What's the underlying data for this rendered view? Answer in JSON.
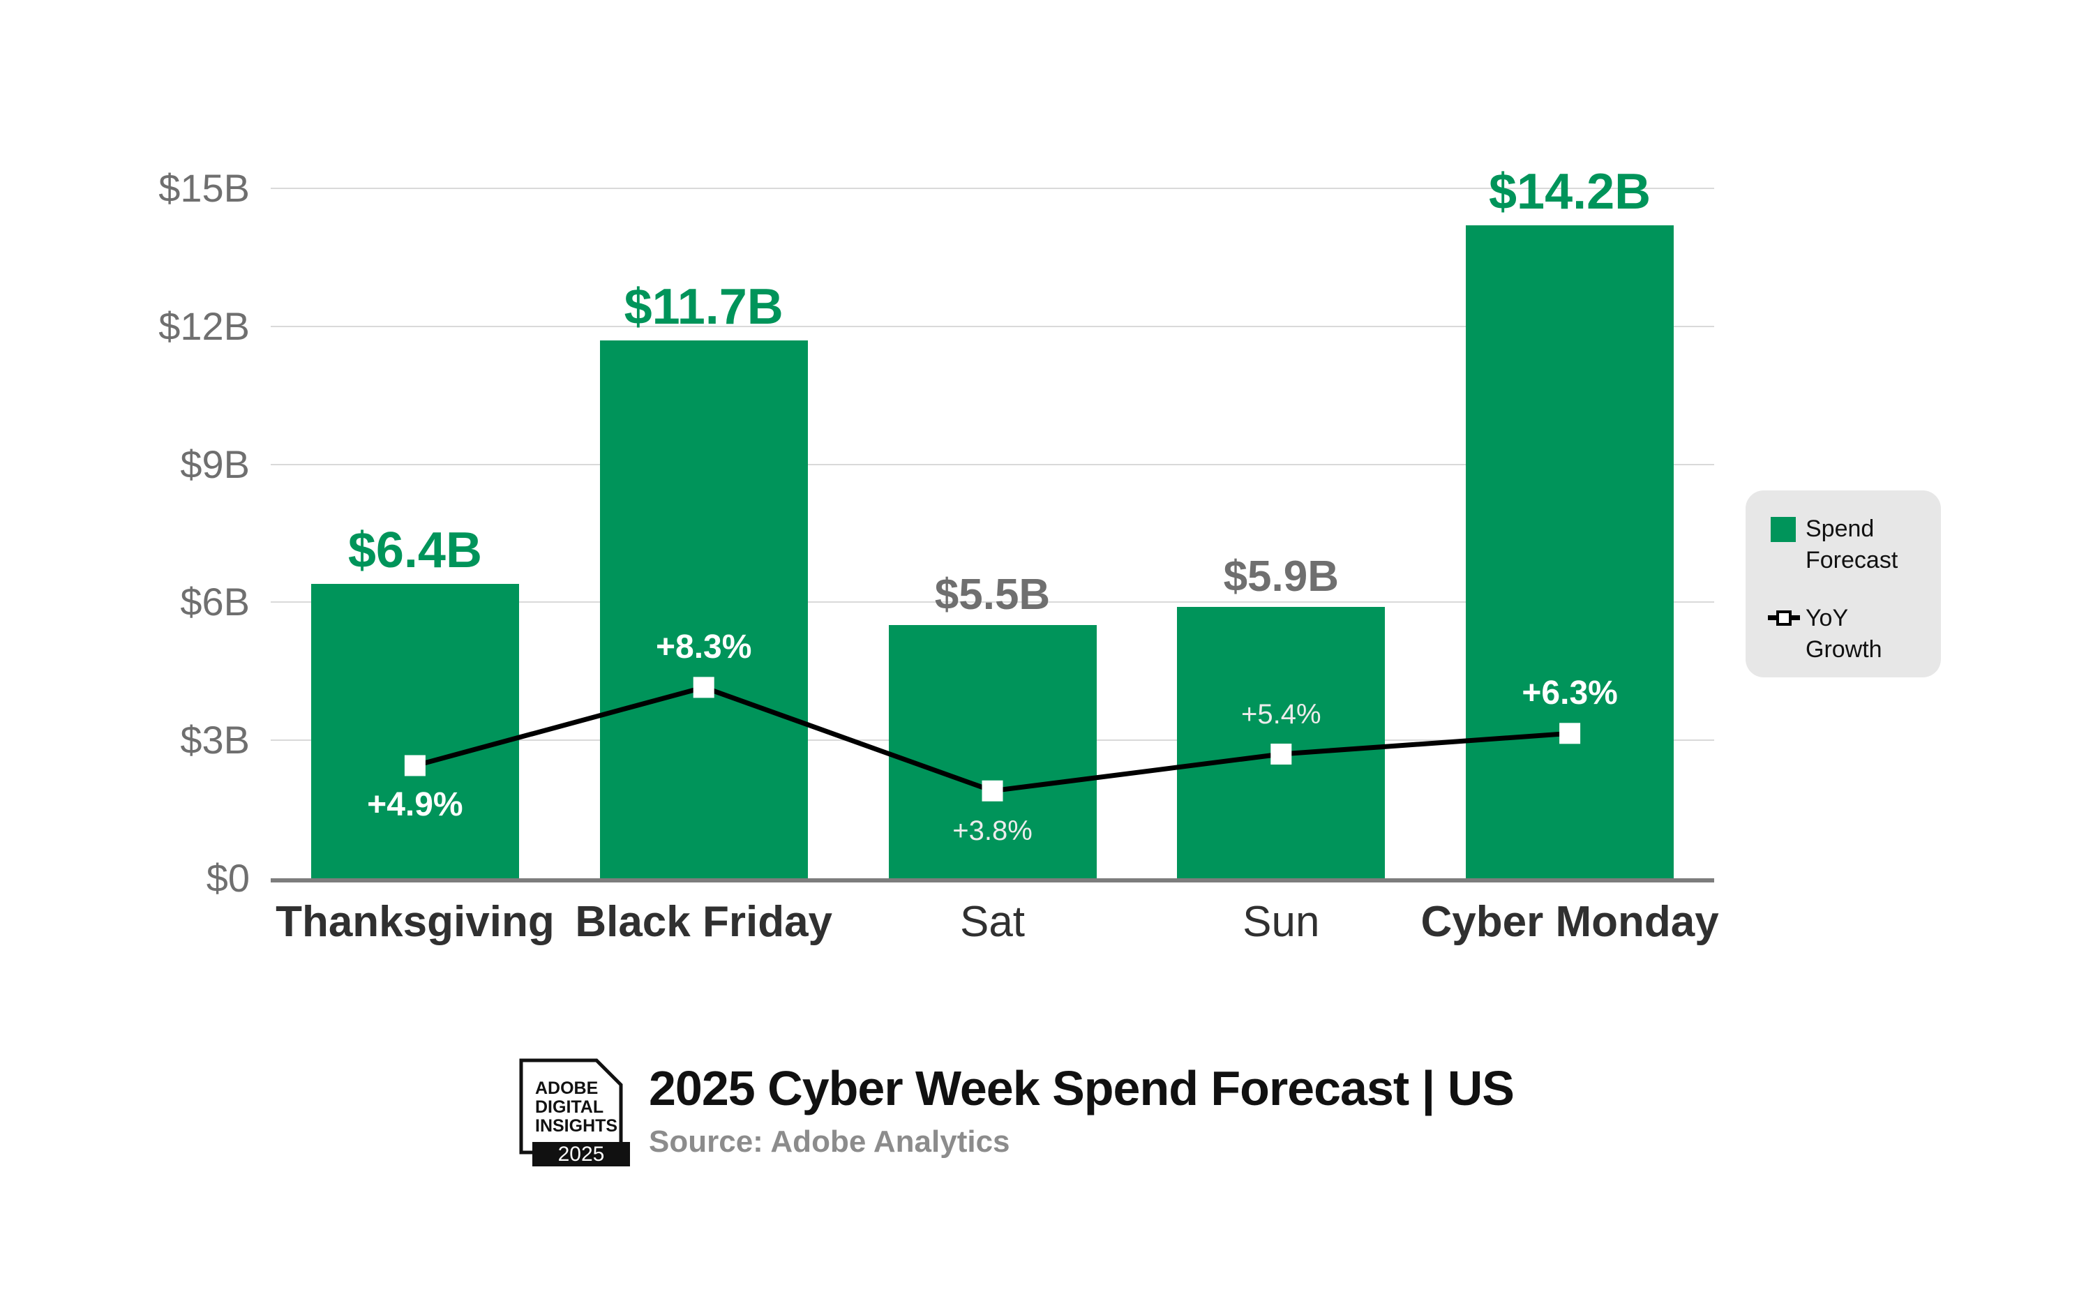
{
  "colors": {
    "bar_green": "#00945a",
    "label_green": "#00945a",
    "label_gray": "#6f6f6f",
    "gridline": "#d9d9d9",
    "axis_line": "#7d7d7d",
    "x_label": "#303030",
    "line_black": "#000000",
    "marker_white": "#ffffff",
    "legend_bg": "#e7e7e7",
    "title_black": "#111111",
    "source_gray": "#8c8c8c"
  },
  "chart_data": {
    "type": "bar",
    "subtype": "bar-line-combo",
    "title": "2025 Cyber Week Spend Forecast | US",
    "categories": [
      "Thanksgiving",
      "Black Friday",
      "Sat",
      "Sun",
      "Cyber Monday"
    ],
    "category_emphasis": [
      true,
      true,
      false,
      false,
      true
    ],
    "series": [
      {
        "name": "Spend Forecast",
        "type": "bar",
        "unit": "USD billions",
        "values": [
          6.4,
          11.7,
          5.5,
          5.9,
          14.2
        ],
        "data_labels": [
          "$6.4B",
          "$11.7B",
          "$5.5B",
          "$5.9B",
          "$14.2B"
        ],
        "label_color_emphasis": [
          true,
          true,
          false,
          false,
          true
        ]
      },
      {
        "name": "YoY Growth",
        "type": "line",
        "unit": "percent",
        "values": [
          4.9,
          8.3,
          3.8,
          5.4,
          6.3
        ],
        "data_labels": [
          "+4.9%",
          "+8.3%",
          "+3.8%",
          "+5.4%",
          "+6.3%"
        ],
        "label_side": [
          "below",
          "above",
          "below",
          "above",
          "above"
        ],
        "label_emphasis": [
          true,
          true,
          false,
          false,
          true
        ]
      }
    ],
    "yaxis": {
      "min": 0,
      "max": 15,
      "ticks": [
        {
          "value": 15,
          "label": "$15B"
        },
        {
          "value": 12,
          "label": "$12B"
        },
        {
          "value": 9,
          "label": "$9B"
        },
        {
          "value": 6,
          "label": "$6B"
        },
        {
          "value": 3,
          "label": "$3B"
        },
        {
          "value": 0,
          "label": "$0"
        }
      ]
    },
    "secondary_axis_mapping": "1 percent YoY growth plotted at same height as 0.5 billion dollars",
    "grid": "horizontal-only",
    "legend_position": "right"
  },
  "legend": {
    "items": [
      {
        "label": "Spend Forecast",
        "swatch": "green-square"
      },
      {
        "label": "YoY Growth",
        "swatch": "line-with-square-marker"
      }
    ]
  },
  "footer": {
    "badge_lines": [
      "ADOBE",
      "DIGITAL",
      "INSIGHTS"
    ],
    "badge_year": "2025",
    "title": "2025 Cyber Week Spend Forecast | US",
    "source": "Source: Adobe Analytics"
  }
}
